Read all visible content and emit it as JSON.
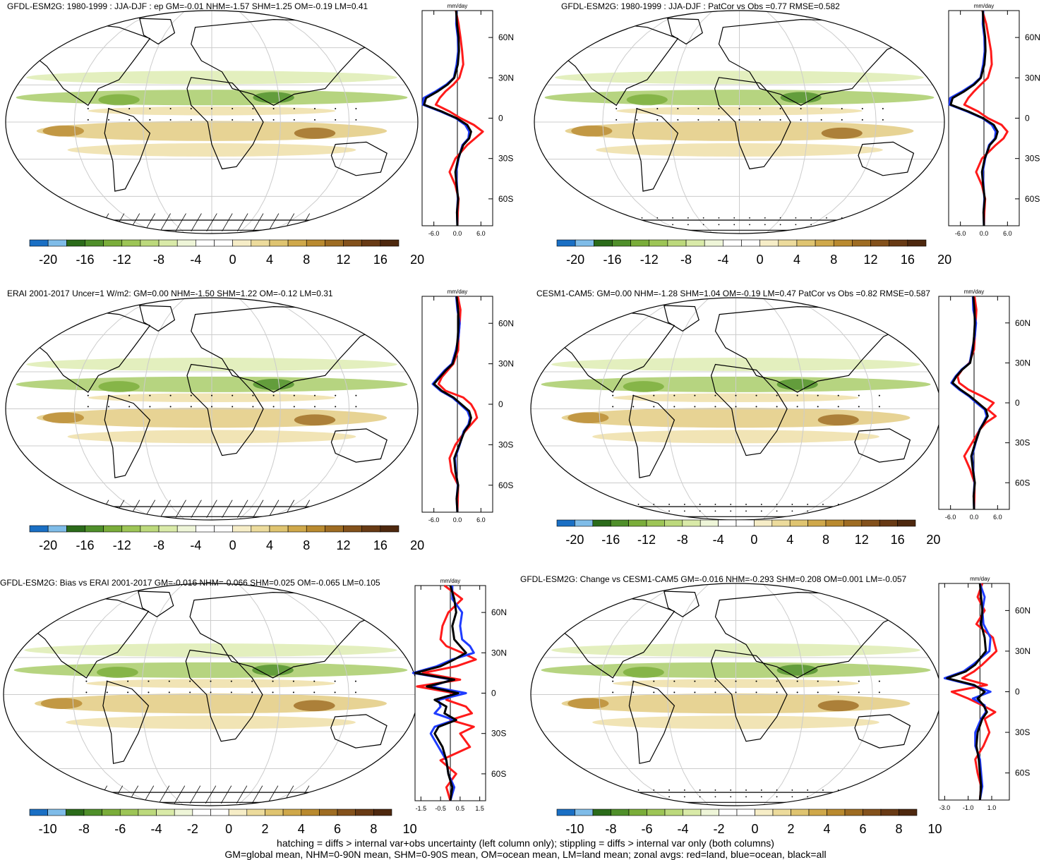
{
  "colors": {
    "land": "#ff1a1a",
    "ocean": "#1f3cff",
    "all": "#000000",
    "palette": [
      "#1a6fc4",
      "#7fbce8",
      "#2b6b1a",
      "#4f8f2a",
      "#7aad3a",
      "#9dc556",
      "#bcd97c",
      "#d9eaa8",
      "#eef5d8",
      "#ffffff",
      "#ffffff",
      "#f6edc7",
      "#ecdb9c",
      "#dfc470",
      "#cfa84a",
      "#b98a2f",
      "#9e6c22",
      "#83511b",
      "#683a14",
      "#4e280e"
    ]
  },
  "caption": {
    "line1": "hatching = diffs > internal var+obs uncertainty (left column only); stippling = diffs > internal var only (both columns)",
    "line2": "GM=global mean, NHM=0-90N mean, SHM=0-90S mean, OM=ocean mean, LM=land mean; zonal avgs: red=land, blue=ocean, black=all"
  },
  "chart_data": [
    {
      "type": "heatmap",
      "title": "GFDL-ESM2G: 1980-1999 : JJA-DJF : ep GM=-0.01 NHM=-1.57 SHM=1.25 OM=-0.19 LM=0.41",
      "colorbar": {
        "ticks": [
          "-20",
          "-16",
          "-12",
          "-8",
          "-4",
          "0",
          "4",
          "8",
          "12",
          "16",
          "20"
        ],
        "range": [
          -22,
          22
        ]
      },
      "zonal": {
        "unit": "mm/day",
        "xlim": [
          -9,
          9
        ],
        "xticks": [
          "-6.0",
          "0.0",
          "6.0"
        ],
        "xtick_values": [
          -6,
          0,
          6
        ],
        "lat_ticks": [
          "60N",
          "30N",
          "0",
          "30S",
          "60S"
        ],
        "lat_values": [
          60,
          30,
          0,
          -30,
          -60
        ],
        "lat_range": [
          -80,
          80
        ],
        "lat": [
          80,
          70,
          60,
          50,
          40,
          30,
          25,
          20,
          15,
          10,
          5,
          0,
          -5,
          -10,
          -15,
          -20,
          -30,
          -40,
          -50,
          -60,
          -70,
          -80
        ],
        "all": [
          -0.3,
          -0.1,
          0.3,
          0.4,
          0.1,
          -0.8,
          -2.5,
          -5.0,
          -8.0,
          -8.5,
          -4.0,
          -0.2,
          2.5,
          3.5,
          3.0,
          1.5,
          0.2,
          -0.5,
          -0.2,
          0.2,
          -0.1,
          0
        ],
        "land": [
          -0.4,
          0.3,
          0.8,
          1.2,
          1.5,
          0.5,
          -1.0,
          -3.0,
          -4.5,
          -5.5,
          -2.0,
          0.8,
          4.2,
          6.5,
          4.5,
          2.5,
          -0.5,
          -2.0,
          -0.5,
          0.3,
          0.1,
          0
        ],
        "ocean": [
          -0.2,
          -0.3,
          0.1,
          0.2,
          -0.2,
          -0.9,
          -2.8,
          -5.5,
          -8.6,
          -8.8,
          -4.3,
          -0.4,
          2.0,
          3.0,
          2.8,
          1.3,
          0.3,
          -0.3,
          -0.1,
          0.1,
          -0.1,
          0
        ]
      }
    },
    {
      "type": "heatmap",
      "title": "GFDL-ESM2G: 1980-1999 : JJA-DJF : PatCor vs Obs =0.77 RMSE=0.582",
      "colorbar": {
        "ticks": [
          "-20",
          "-16",
          "-12",
          "-8",
          "-4",
          "0",
          "4",
          "8",
          "12",
          "16",
          "20"
        ],
        "range": [
          -22,
          22
        ]
      },
      "zonal": {
        "unit": "mm/day",
        "xlim": [
          -9,
          9
        ],
        "xticks": [
          "-6.0",
          "0.0",
          "6.0"
        ],
        "xtick_values": [
          -6,
          0,
          6
        ],
        "lat_ticks": [
          "60N",
          "30N",
          "0",
          "30S",
          "60S"
        ],
        "lat_values": [
          60,
          30,
          0,
          -30,
          -60
        ],
        "lat_range": [
          -80,
          80
        ],
        "lat": [
          80,
          70,
          60,
          50,
          40,
          30,
          25,
          20,
          15,
          10,
          5,
          0,
          -5,
          -10,
          -15,
          -20,
          -30,
          -40,
          -50,
          -60,
          -70,
          -80
        ],
        "all": [
          -0.3,
          -0.1,
          0.3,
          0.4,
          0.1,
          -0.8,
          -2.5,
          -5.0,
          -8.0,
          -8.5,
          -4.0,
          -0.2,
          2.5,
          3.5,
          3.0,
          1.5,
          0.2,
          -0.5,
          -0.2,
          0.2,
          -0.1,
          0
        ],
        "land": [
          -0.4,
          0.6,
          1.2,
          1.8,
          2.0,
          1.0,
          -0.8,
          -2.5,
          -4.0,
          -5.0,
          -1.5,
          1.0,
          4.5,
          6.0,
          5.0,
          3.0,
          -0.5,
          -2.0,
          -0.5,
          0.3,
          0.1,
          0
        ],
        "ocean": [
          -0.2,
          -0.3,
          0.1,
          0.2,
          -0.2,
          -0.9,
          -2.8,
          -5.5,
          -8.6,
          -8.8,
          -4.3,
          -0.4,
          2.0,
          3.0,
          2.8,
          1.3,
          0.3,
          -0.3,
          -0.1,
          0.1,
          -0.1,
          0
        ]
      }
    },
    {
      "type": "heatmap",
      "title": "ERAI 2001-2017 Uncer=1 W/m2: GM=0.00 NHM=-1.50 SHM=1.22 OM=-0.12 LM=0.31",
      "colorbar": {
        "ticks": [
          "-20",
          "-16",
          "-12",
          "-8",
          "-4",
          "0",
          "4",
          "8",
          "12",
          "16",
          "20"
        ],
        "range": [
          -22,
          22
        ]
      },
      "zonal": {
        "unit": "mm/day",
        "xlim": [
          -9,
          9
        ],
        "xticks": [
          "-6.0",
          "0.0",
          "6.0"
        ],
        "xtick_values": [
          -6,
          0,
          6
        ],
        "lat_ticks": [
          "60N",
          "30N",
          "0",
          "30S",
          "60S"
        ],
        "lat_values": [
          60,
          30,
          0,
          -30,
          -60
        ],
        "lat_range": [
          -80,
          80
        ],
        "lat": [
          80,
          70,
          60,
          50,
          40,
          30,
          25,
          20,
          15,
          10,
          5,
          0,
          -5,
          -10,
          -15,
          -20,
          -30,
          -40,
          -50,
          -60,
          -70,
          -80
        ],
        "all": [
          -0.2,
          0.2,
          0.3,
          0.1,
          -0.2,
          -1.2,
          -3.0,
          -4.5,
          -6.0,
          -4.0,
          -1.0,
          1.0,
          3.0,
          3.5,
          3.0,
          1.8,
          0.5,
          -0.8,
          -0.5,
          0.2,
          -0.2,
          0
        ],
        "land": [
          0.1,
          0.8,
          0.6,
          0.3,
          0.2,
          -1.0,
          -2.5,
          -4.0,
          -4.8,
          -3.0,
          1.5,
          3.5,
          4.5,
          5.0,
          3.5,
          2.0,
          -0.5,
          -2.0,
          -1.5,
          0.2,
          0.1,
          0
        ],
        "ocean": [
          -0.3,
          0.0,
          0.6,
          0.3,
          -0.4,
          -1.4,
          -3.3,
          -4.8,
          -6.3,
          -4.3,
          -1.3,
          0.7,
          2.6,
          3.2,
          2.8,
          1.6,
          0.6,
          -0.6,
          -0.4,
          0.1,
          -0.2,
          0
        ]
      }
    },
    {
      "type": "heatmap",
      "title": "CESM1-CAM5: GM=0.00 NHM=-1.28 SHM=1.04 OM=-0.19 LM=0.47 PatCor vs Obs =0.82 RMSE=0.587",
      "colorbar": {
        "ticks": [
          "-20",
          "-16",
          "-12",
          "-8",
          "-4",
          "0",
          "4",
          "8",
          "12",
          "16",
          "20"
        ],
        "range": [
          -22,
          22
        ]
      },
      "zonal": {
        "unit": "mm/day",
        "xlim": [
          -9,
          9
        ],
        "xticks": [
          "-6.0",
          "0.0",
          "6.0"
        ],
        "xtick_values": [
          -6,
          0,
          6
        ],
        "lat_ticks": [
          "60N",
          "30N",
          "0",
          "30S",
          "60S"
        ],
        "lat_values": [
          60,
          30,
          0,
          -30,
          -60
        ],
        "lat_range": [
          -80,
          80
        ],
        "lat": [
          80,
          70,
          60,
          50,
          40,
          30,
          25,
          20,
          15,
          10,
          5,
          0,
          -5,
          -10,
          -15,
          -20,
          -30,
          -40,
          -50,
          -60,
          -70,
          -80
        ],
        "all": [
          -0.2,
          0.1,
          0.2,
          0.0,
          -0.3,
          -1.0,
          -3.0,
          -4.5,
          -5.5,
          -3.5,
          -1.0,
          1.0,
          3.0,
          3.5,
          2.5,
          1.5,
          0.3,
          -0.7,
          -0.3,
          0.2,
          -0.1,
          0
        ],
        "land": [
          0.1,
          0.6,
          0.4,
          0.2,
          0.0,
          -1.2,
          -3.0,
          -4.2,
          -3.8,
          -1.5,
          2.0,
          5.0,
          3.5,
          5.5,
          3.0,
          1.5,
          -0.5,
          -2.5,
          -1.0,
          0.1,
          0.1,
          0
        ],
        "ocean": [
          -0.3,
          -0.2,
          0.5,
          0.2,
          -0.5,
          -1.1,
          -3.2,
          -4.7,
          -5.8,
          -3.8,
          -1.3,
          0.6,
          2.7,
          3.2,
          2.4,
          1.4,
          0.4,
          -0.5,
          -0.2,
          0.1,
          -0.1,
          0
        ]
      }
    },
    {
      "type": "heatmap",
      "title": "GFDL-ESM2G: Bias vs ERAI 2001-2017 GM=-0.016 NHM=-0.066 SHM=0.025 OM=-0.065 LM=0.105",
      "colorbar": {
        "ticks": [
          "-10",
          "-8",
          "-6",
          "-4",
          "-2",
          "0",
          "2",
          "4",
          "6",
          "8",
          "10"
        ],
        "range": [
          -11,
          11
        ]
      },
      "zonal": {
        "unit": "mm/day",
        "xlim": [
          -1.8,
          1.8
        ],
        "xticks": [
          "-1.5",
          "-0.5",
          "0.5",
          "1.5"
        ],
        "xtick_values": [
          -1.5,
          -0.5,
          0.5,
          1.5
        ],
        "lat_ticks": [
          "60N",
          "30N",
          "0",
          "30S",
          "60S"
        ],
        "lat_values": [
          60,
          30,
          0,
          -30,
          -60
        ],
        "lat_range": [
          -80,
          80
        ],
        "lat": [
          80,
          70,
          60,
          50,
          40,
          35,
          30,
          25,
          20,
          15,
          10,
          5,
          0,
          -5,
          -10,
          -15,
          -20,
          -25,
          -30,
          -40,
          -50,
          -60,
          -70,
          -80
        ],
        "all": [
          0.0,
          0.2,
          0.3,
          0.1,
          0.2,
          0.5,
          0.8,
          0.2,
          -0.5,
          -1.8,
          0.2,
          -1.2,
          0.4,
          -0.8,
          -0.2,
          -0.3,
          0.3,
          -0.6,
          -0.8,
          -0.4,
          -0.2,
          -0.1,
          0.1,
          0
        ],
        "land": [
          -0.3,
          0.6,
          -0.1,
          -0.4,
          -0.5,
          -0.2,
          0.6,
          1.3,
          0.3,
          -1.4,
          0.5,
          -1.7,
          0.2,
          -0.2,
          0.8,
          1.1,
          0.0,
          1.2,
          0.5,
          1.0,
          -0.5,
          0.3,
          -0.2,
          0
        ],
        "ocean": [
          0.1,
          0.1,
          0.6,
          0.5,
          0.6,
          1.0,
          1.2,
          0.1,
          -0.7,
          -1.9,
          0.1,
          -1.0,
          0.8,
          -0.6,
          -0.5,
          -0.8,
          0.2,
          -0.8,
          -1.0,
          -0.6,
          -0.2,
          -0.1,
          0.2,
          0
        ]
      }
    },
    {
      "type": "heatmap",
      "title": "GFDL-ESM2G: Change vs CESM1-CAM5 GM=-0.016 NHM=-0.293 SHM=0.208 OM=0.001 LM=-0.057",
      "colorbar": {
        "ticks": [
          "-10",
          "-8",
          "-6",
          "-4",
          "-2",
          "0",
          "2",
          "4",
          "6",
          "8",
          "10"
        ],
        "range": [
          -11,
          11
        ]
      },
      "zonal": {
        "unit": "mm/day",
        "xlim": [
          -3.5,
          2.5
        ],
        "xticks": [
          "-3.0",
          "-1.0",
          "1.0"
        ],
        "xtick_values": [
          -3,
          -1,
          1
        ],
        "lat_ticks": [
          "60N",
          "30N",
          "0",
          "30S",
          "60S"
        ],
        "lat_values": [
          60,
          30,
          0,
          -30,
          -60
        ],
        "lat_range": [
          -80,
          80
        ],
        "lat": [
          80,
          70,
          60,
          50,
          40,
          30,
          20,
          15,
          10,
          5,
          0,
          -5,
          -10,
          -15,
          -20,
          -30,
          -40,
          -50,
          -60,
          -70,
          -80
        ],
        "all": [
          0.0,
          0.1,
          0.2,
          0.1,
          0.4,
          0.5,
          -0.4,
          -1.2,
          -2.8,
          -0.5,
          0.4,
          -0.2,
          0.3,
          0.6,
          0.2,
          -0.2,
          -0.3,
          -0.1,
          0.0,
          0.1,
          0
        ],
        "land": [
          0.2,
          -0.2,
          0.4,
          -0.3,
          1.1,
          1.4,
          0.2,
          -0.5,
          -1.5,
          0.6,
          -2.4,
          -1.0,
          0.2,
          1.3,
          0.4,
          0.8,
          0.3,
          -0.4,
          -0.2,
          0.1,
          0
        ],
        "ocean": [
          0.0,
          0.4,
          0.2,
          0.3,
          0.9,
          0.8,
          -0.6,
          -1.4,
          -3.0,
          -0.7,
          0.9,
          -0.6,
          0.4,
          0.5,
          0.1,
          -0.4,
          -0.4,
          0.0,
          0.1,
          0.2,
          0
        ]
      }
    }
  ]
}
